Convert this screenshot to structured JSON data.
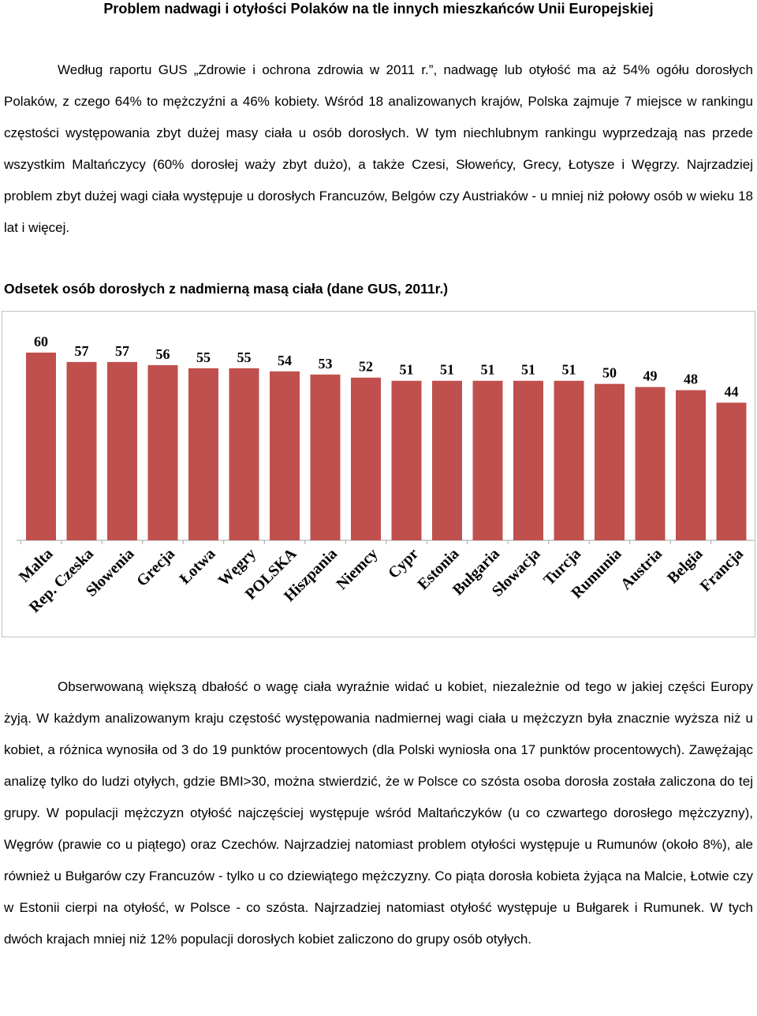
{
  "document": {
    "title": "Problem nadwagi i otyłości Polaków na tle innych mieszkańców Unii Europejskiej",
    "paragraph1": "Według raportu GUS „Zdrowie i ochrona zdrowia w 2011 r.”, nadwagę lub otyłość ma aż 54% ogółu dorosłych Polaków, z czego 64% to mężczyźni a 46% kobiety. Wśród 18 analizowanych krajów, Polska zajmuje 7 miejsce w rankingu częstości występowania zbyt dużej masy ciała u osób dorosłych. W tym niechlubnym rankingu wyprzedzają nas przede wszystkim Maltańczycy (60% dorosłej waży zbyt dużo), a także Czesi, Słoweńcy, Grecy, Łotysze i Węgrzy. Najrzadziej problem zbyt dużej wagi ciała występuje u dorosłych Francuzów, Belgów czy Austriaków - u mniej niż połowy osób w wieku 18 lat i więcej.",
    "chart_heading": "Odsetek osób dorosłych z nadmierną masą ciała (dane GUS, 2011r.)",
    "paragraph2": "Obserwowaną większą dbałość o wagę ciała wyraźnie widać u kobiet, niezależnie od tego w jakiej części Europy żyją. W każdym analizowanym kraju częstość występowania nadmiernej wagi ciała u mężczyzn była znacznie wyższa niż u kobiet, a różnica wynosiła od 3 do 19 punktów procentowych (dla Polski wyniosła ona 17 punktów procentowych). Zawężając analizę tylko do ludzi otyłych, gdzie BMI>30, można stwierdzić, że w Polsce co szósta osoba dorosła została zaliczona do tej grupy. W populacji mężczyzn otyłość najczęściej występuje wśród Maltańczyków (u co czwartego dorosłego mężczyzny), Węgrów (prawie co u piątego) oraz Czechów. Najrzadziej natomiast problem otyłości występuje u Rumunów (około 8%), ale również u Bułgarów czy Francuzów - tylko u co dziewiątego mężczyzny. Co piąta dorosła kobieta żyjąca na Malcie, Łotwie czy w Estonii cierpi na otyłość, w Polsce - co szósta. Najrzadziej natomiast otyłość występuje u Bułgarek i Rumunek. W tych dwóch krajach mniej niż 12% populacji dorosłych kobiet zaliczono do grupy osób otyłych."
  },
  "chart_data": {
    "type": "bar",
    "categories": [
      "Malta",
      "Rep. Czeska",
      "Słowenia",
      "Grecja",
      "Łotwa",
      "Węgry",
      "POLSKA",
      "Hiszpania",
      "Niemcy",
      "Cypr",
      "Estonia",
      "Bułgaria",
      "Słowacja",
      "Turcja",
      "Rumunia",
      "Austria",
      "Belgia",
      "Francja"
    ],
    "values": [
      60,
      57,
      57,
      56,
      55,
      55,
      54,
      53,
      52,
      51,
      51,
      51,
      51,
      51,
      50,
      49,
      48,
      44
    ],
    "title": "",
    "xlabel": "",
    "ylabel": "",
    "ylim": [
      0,
      62
    ],
    "grid": false,
    "legend": "none",
    "colors": {
      "bar": "#c0504d"
    }
  }
}
